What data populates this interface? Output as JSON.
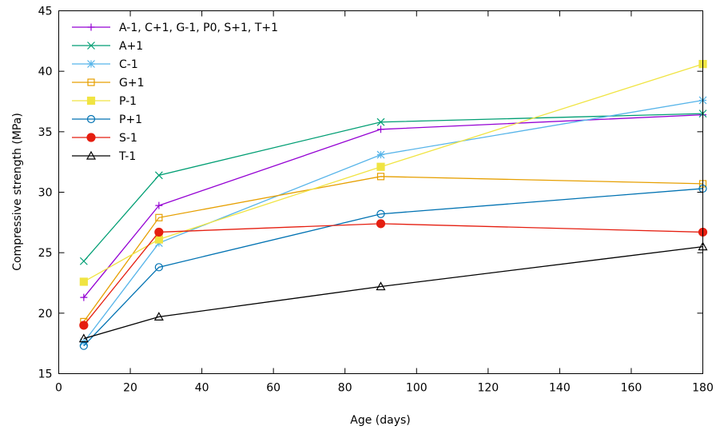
{
  "chart_data": {
    "type": "line",
    "xlabel": "Age (days)",
    "ylabel": "Compressive strength (MPa)",
    "xlim": [
      0,
      180
    ],
    "ylim": [
      15,
      45
    ],
    "x_ticks": [
      0,
      20,
      40,
      60,
      80,
      100,
      120,
      140,
      160,
      180
    ],
    "y_ticks": [
      15,
      20,
      25,
      30,
      35,
      40,
      45
    ],
    "grid": false,
    "legend_position": "top-left",
    "x": [
      7,
      28,
      90,
      180
    ],
    "series": [
      {
        "name": "A-1, C+1, G-1, P0, S+1, T+1",
        "values": [
          21.3,
          28.9,
          35.2,
          36.4
        ],
        "color": "#9400d3",
        "marker": "plus"
      },
      {
        "name": "A+1",
        "values": [
          24.3,
          31.4,
          35.8,
          36.5
        ],
        "color": "#009e73",
        "marker": "cross"
      },
      {
        "name": "C-1",
        "values": [
          17.6,
          25.8,
          33.1,
          37.6
        ],
        "color": "#56b4e9",
        "marker": "star"
      },
      {
        "name": "G+1",
        "values": [
          19.3,
          27.9,
          31.3,
          30.7
        ],
        "color": "#e69f00",
        "marker": "square-open"
      },
      {
        "name": "P-1",
        "values": [
          22.6,
          26.1,
          32.1,
          40.6
        ],
        "color": "#f0e442",
        "marker": "square-filled"
      },
      {
        "name": "P+1",
        "values": [
          17.3,
          23.8,
          28.2,
          30.3
        ],
        "color": "#0072b2",
        "marker": "circle-open"
      },
      {
        "name": "S-1",
        "values": [
          19.0,
          26.7,
          27.4,
          26.7
        ],
        "color": "#e51e10",
        "marker": "circle-filled"
      },
      {
        "name": "T-1",
        "values": [
          17.9,
          19.7,
          22.2,
          25.5
        ],
        "color": "#000000",
        "marker": "triangle-open"
      }
    ]
  }
}
